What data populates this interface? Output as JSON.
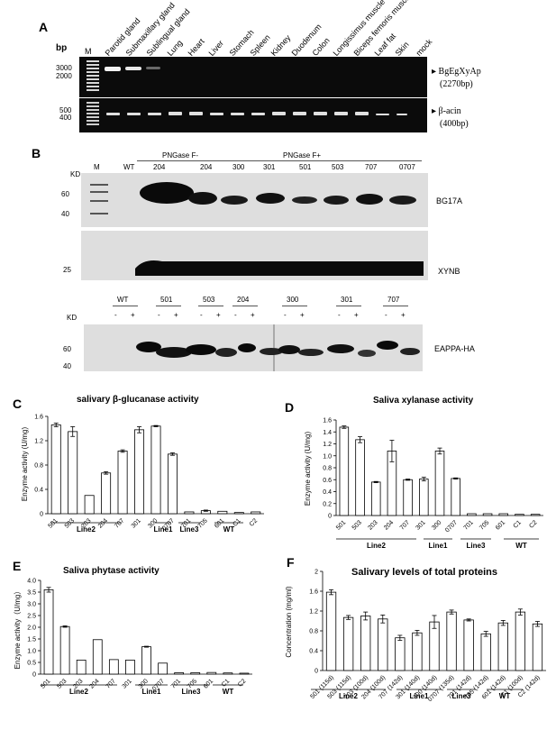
{
  "panelA": {
    "letter": "A",
    "unit": "bp",
    "marker": "M",
    "lanes": [
      "Parotid gland",
      "Submaxillary gland",
      "Sublingual gland",
      "Lung",
      "Heart",
      "Liver",
      "Stomach",
      "Spleen",
      "Kidney",
      "Duodenum",
      "Colon",
      "Longissimus muscle",
      "Biceps femoris muscle",
      "Leaf fat",
      "Skin",
      "mock"
    ],
    "top_ticks": [
      "3000",
      "2000"
    ],
    "bottom_ticks": [
      "500",
      "400"
    ],
    "top_label": "BgEgXyAp",
    "top_label2": "(2270bp)",
    "bottom_label": "β-acin",
    "bottom_label2": "(400bp)"
  },
  "panelB": {
    "letter": "B",
    "kd": "KD",
    "header_m": "M",
    "header_wt": "WT",
    "group_minus": "PNGase F-",
    "group_plus": "PNGase F+",
    "lanes": [
      "204",
      "204",
      "300",
      "301",
      "501",
      "503",
      "707",
      "0707"
    ],
    "blot1_ticks": [
      "60",
      "40"
    ],
    "blot1_label": "BG17A",
    "blot2_ticks": [
      "25"
    ],
    "blot2_label": "XYNB",
    "blot3_kd": "KD",
    "blot3_groups": [
      "WT",
      "501",
      "503",
      "204",
      "300",
      "301",
      "707"
    ],
    "blot3_ticks": [
      "60",
      "40"
    ],
    "blot3_label": "EAPPA-HA",
    "minus": "-",
    "plus": "+"
  },
  "chart_data": [
    {
      "panel": "C",
      "type": "bar",
      "title": "salivary β-glucanase activity",
      "ylabel": "Enzyme activity (U/mg)",
      "ylim": [
        0,
        1.6
      ],
      "yticks": [
        "0",
        "0.4",
        "0.8",
        "1.2",
        "1.6"
      ],
      "categories": [
        "501",
        "503",
        "203",
        "204",
        "707",
        "301",
        "300",
        "0707",
        "701",
        "705",
        "601",
        "C1",
        "C2"
      ],
      "values": [
        1.46,
        1.35,
        0.3,
        0.67,
        1.03,
        1.38,
        1.44,
        0.98,
        0.03,
        0.05,
        0.04,
        0.02,
        0.03
      ],
      "errors": [
        0.03,
        0.08,
        0.0,
        0.02,
        0.02,
        0.05,
        0.01,
        0.02,
        0.0,
        0.01,
        0.0,
        0.0,
        0.0
      ],
      "groups": [
        "Line2",
        "Line1",
        "Line3",
        "WT"
      ]
    },
    {
      "panel": "D",
      "type": "bar",
      "title": "Saliva xylanase activity",
      "ylabel": "Enzyme activity (U/mg)",
      "ylim": [
        0,
        1.6
      ],
      "yticks": [
        "0",
        "0.2",
        "0.4",
        "0.6",
        "0.8",
        "1.0",
        "1.2",
        "1.4",
        "1.6"
      ],
      "categories": [
        "501",
        "503",
        "203",
        "204",
        "707",
        "301",
        "300",
        "0707",
        "701",
        "705",
        "601",
        "C1",
        "C2"
      ],
      "values": [
        1.48,
        1.27,
        0.56,
        1.08,
        0.6,
        0.61,
        1.08,
        0.62,
        0.03,
        0.03,
        0.03,
        0.02,
        0.02
      ],
      "errors": [
        0.02,
        0.05,
        0.01,
        0.18,
        0.01,
        0.03,
        0.05,
        0.01,
        0.0,
        0.0,
        0.0,
        0.0,
        0.0
      ],
      "groups": [
        "Line2",
        "Line1",
        "Line3",
        "WT"
      ]
    },
    {
      "panel": "E",
      "type": "bar",
      "title": "Saliva phytase activity",
      "ylabel": "Enzyme activity（U/mg）",
      "ylim": [
        0,
        4.0
      ],
      "yticks": [
        "0",
        "0.5",
        "1.0",
        "1.5",
        "2.0",
        "2.5",
        "3.0",
        "3.5",
        "4.0"
      ],
      "categories": [
        "501",
        "503",
        "203",
        "204",
        "707",
        "301",
        "300",
        "0707",
        "701",
        "705",
        "601",
        "C1",
        "C2"
      ],
      "values": [
        3.6,
        2.03,
        0.6,
        1.47,
        0.62,
        0.6,
        1.17,
        0.47,
        0.06,
        0.06,
        0.07,
        0.05,
        0.04
      ],
      "errors": [
        0.1,
        0.03,
        0.0,
        0.0,
        0.0,
        0.0,
        0.02,
        0.0,
        0.0,
        0.0,
        0.0,
        0.0,
        0.0
      ],
      "groups": [
        "Line2",
        "Line1",
        "Line3",
        "WT"
      ]
    },
    {
      "panel": "F",
      "type": "bar",
      "title": "Salivary levels of total proteins",
      "ylabel": "Concentration (mg/ml)",
      "ylim": [
        0,
        2.0
      ],
      "yticks": [
        "0",
        "0.4",
        "0.8",
        "1.2",
        "1.6",
        "2"
      ],
      "categories": [
        "501 (115d)",
        "503 (115d)",
        "203 (100d)",
        "204 (100d)",
        "707 (142d)",
        "301 (140d)",
        "300 (140d)",
        "0707 (135d)",
        "701 (142d)",
        "705 (142d)",
        "601 (142d)",
        "C1 (100d)",
        "C2 (142d)"
      ],
      "values": [
        1.58,
        1.07,
        1.1,
        1.04,
        0.66,
        0.76,
        0.98,
        1.18,
        1.02,
        0.74,
        0.96,
        1.18,
        0.94
      ],
      "errors": [
        0.05,
        0.04,
        0.08,
        0.08,
        0.05,
        0.05,
        0.13,
        0.04,
        0.02,
        0.05,
        0.05,
        0.06,
        0.05
      ],
      "groups": [
        "Line2",
        "Line1",
        "Line3",
        "WT"
      ]
    }
  ]
}
